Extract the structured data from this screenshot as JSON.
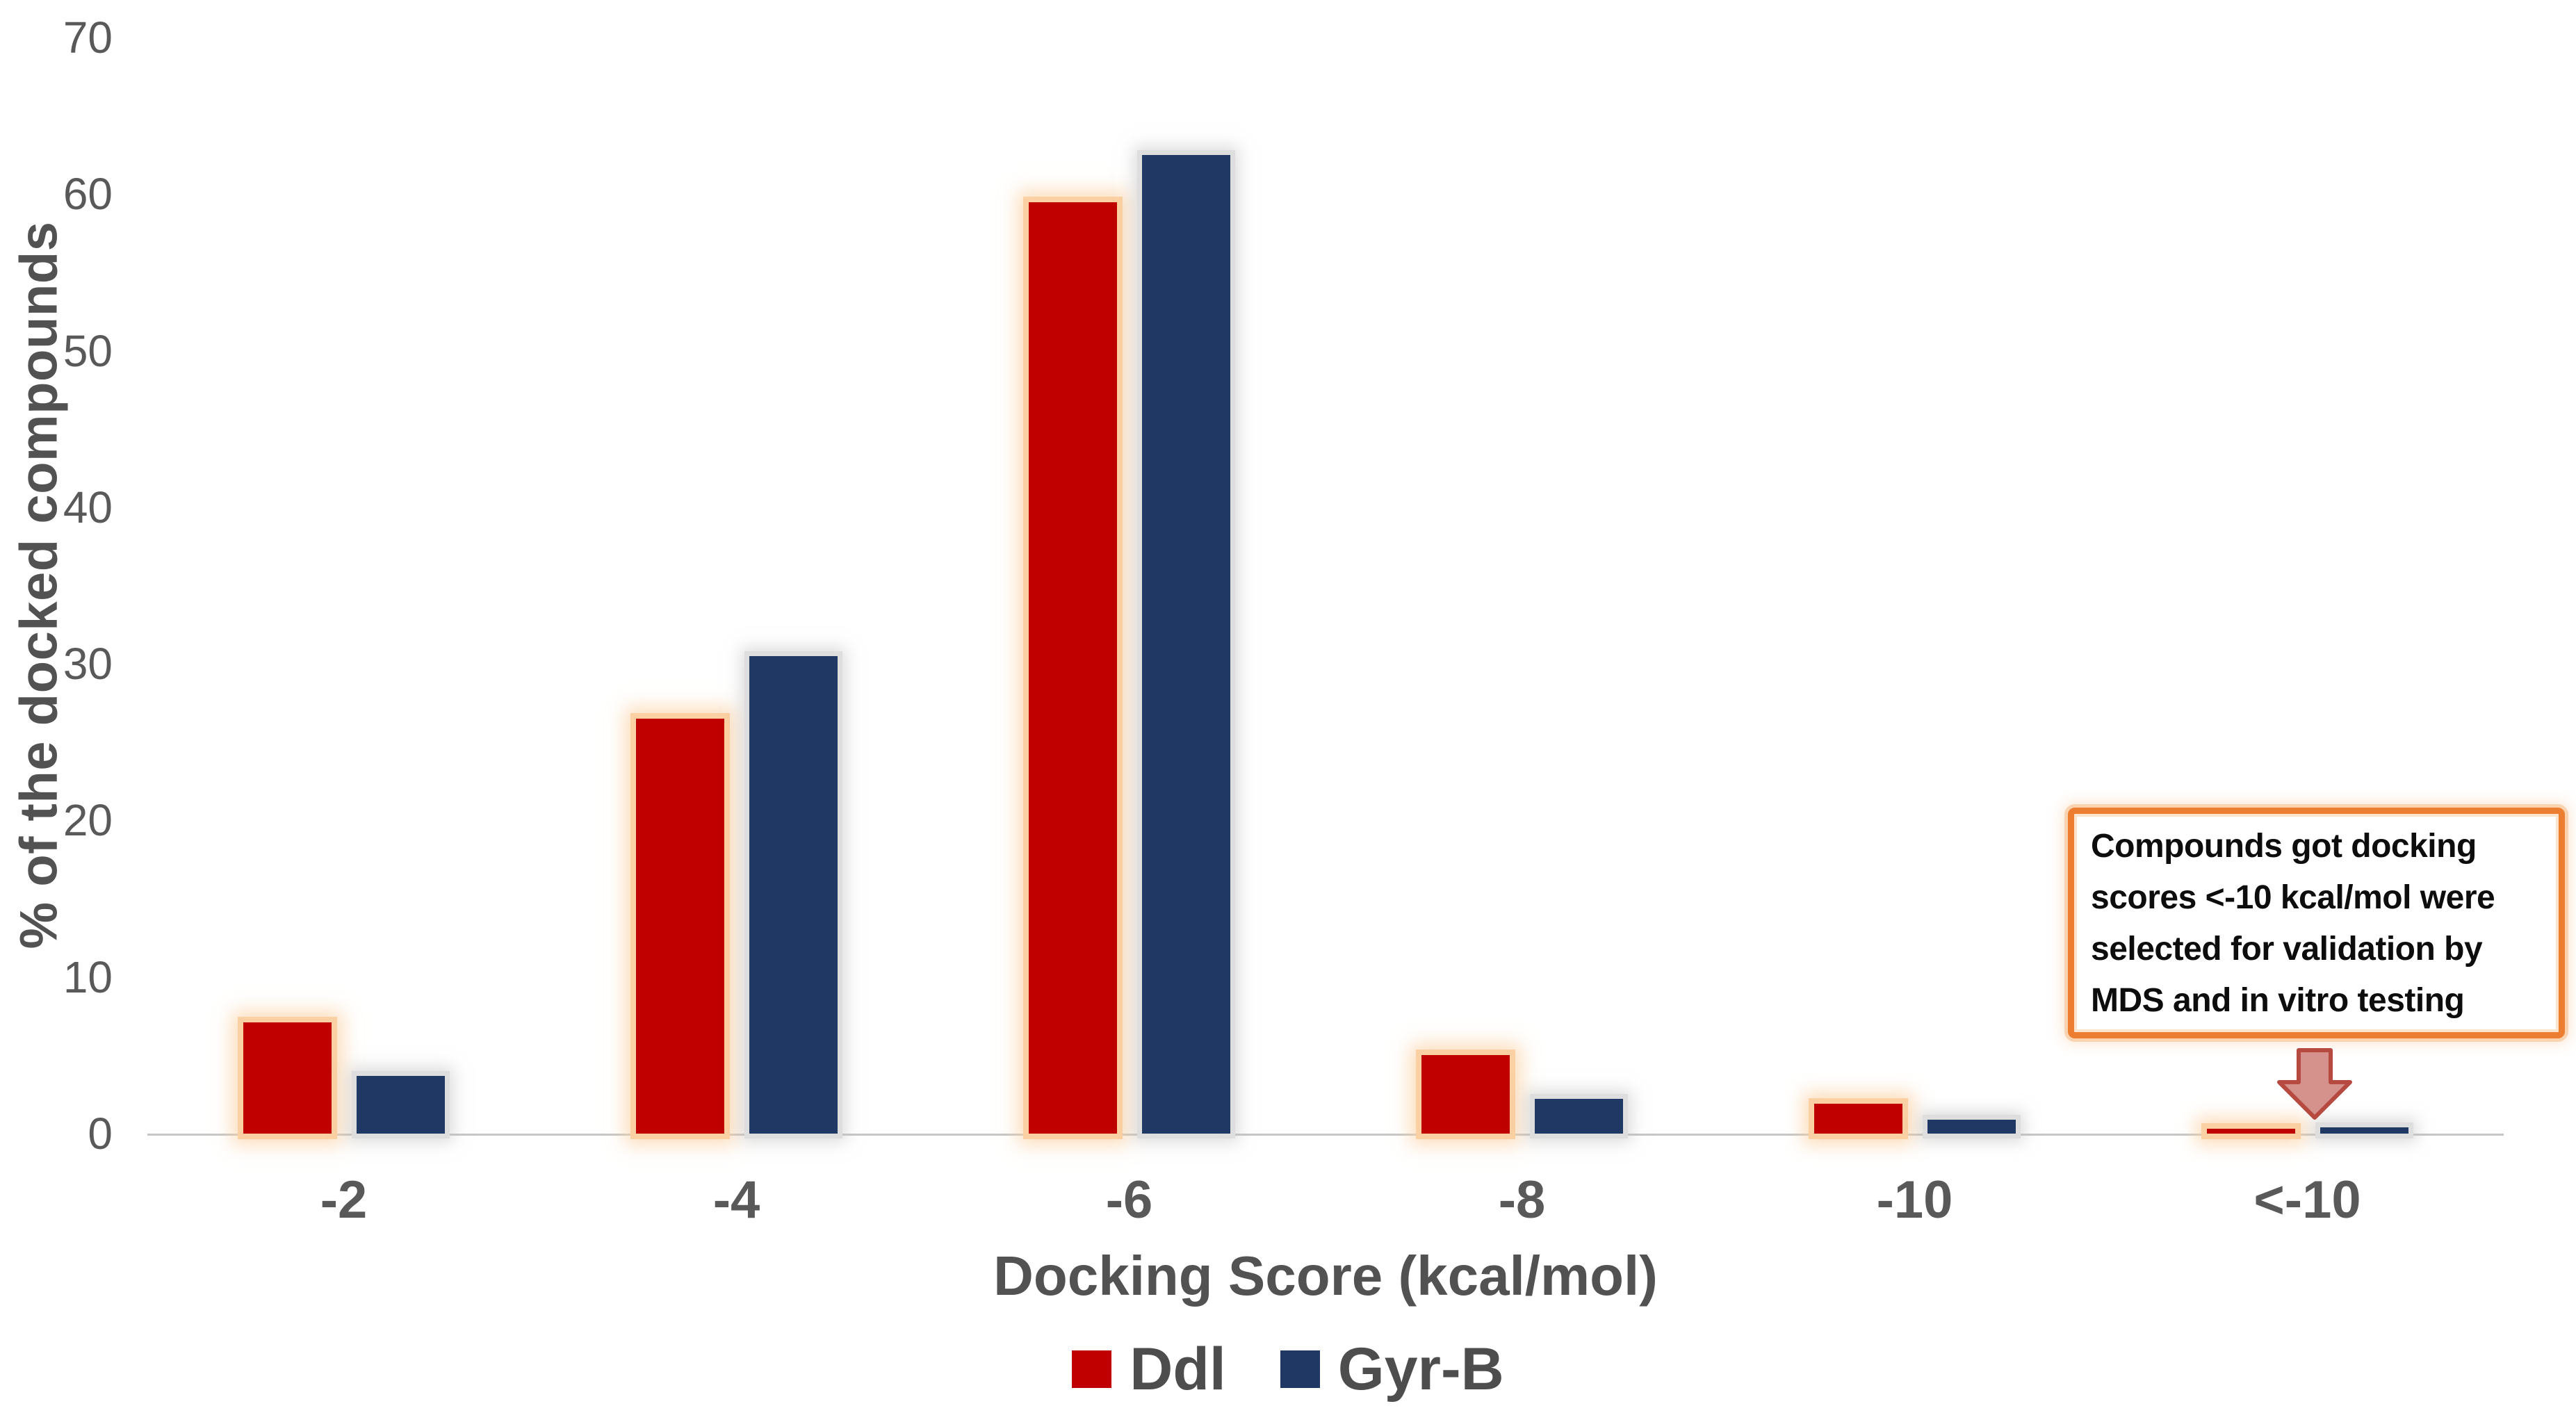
{
  "chart_data": {
    "type": "bar",
    "title": "",
    "categories": [
      "-2",
      "-4",
      "-6",
      "-8",
      "-10",
      "<-10"
    ],
    "series": [
      {
        "name": "Ddl",
        "color": "#c00000",
        "outline": "#fbd0a2",
        "values": [
          7.1,
          26.5,
          59.5,
          5.0,
          1.9,
          0.3
        ]
      },
      {
        "name": "Gyr-B",
        "color": "#1f3864",
        "outline": "#dedede",
        "values": [
          3.7,
          30.5,
          62.5,
          2.2,
          0.9,
          0.4
        ]
      }
    ],
    "xlabel": "Docking Score (kcal/mol)",
    "ylabel": "% of the docked compounds",
    "ylim": [
      0,
      70
    ],
    "yticks": [
      0,
      10,
      20,
      30,
      40,
      50,
      60,
      70
    ],
    "grid": false,
    "legend_position": "bottom"
  },
  "annotation": {
    "text": "Compounds got docking scores <-10 kcal/mol were selected for validation by MDS and in vitro testing",
    "lines": [
      "Compounds got docking",
      "scores <-10 kcal/mol were",
      "selected for validation by",
      "MDS and in vitro testing"
    ],
    "border_color": "#ed7d31",
    "arrow": {
      "icon": "down-arrow-icon",
      "fill": "#d5918b",
      "stroke": "#b64a41"
    }
  },
  "axis_style": {
    "text_color": "#595959",
    "line_color": "#c6c6c6"
  }
}
